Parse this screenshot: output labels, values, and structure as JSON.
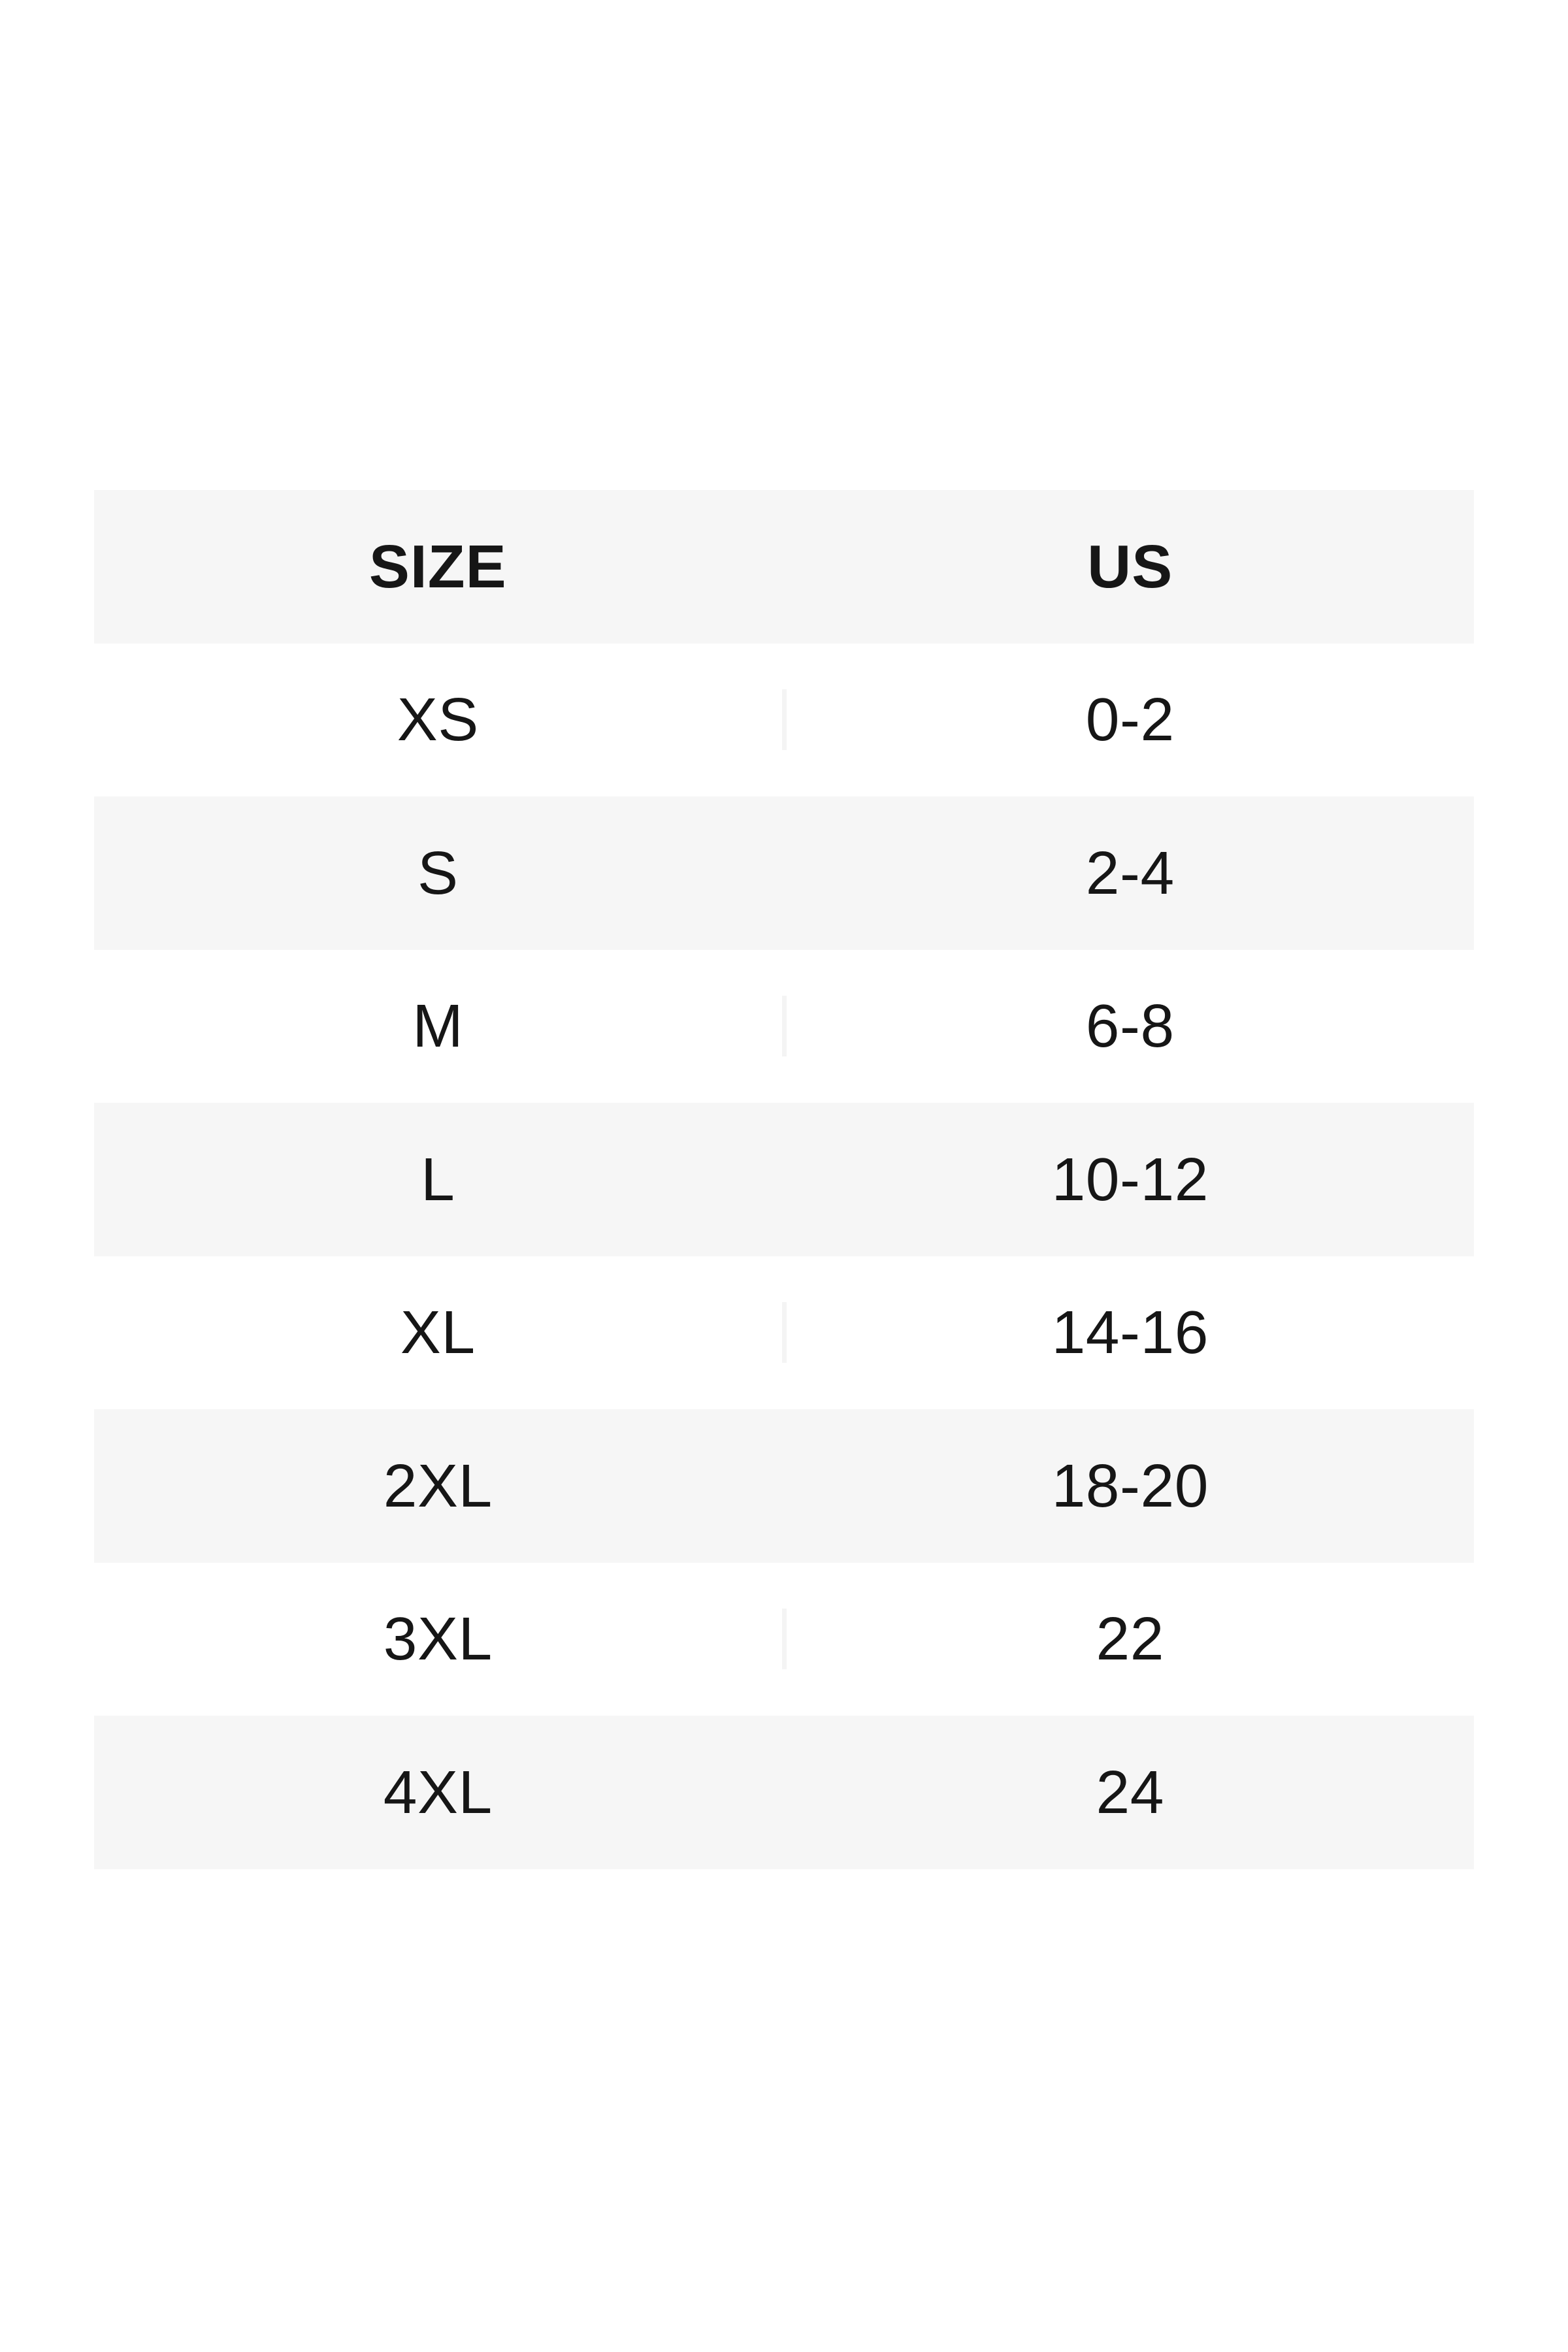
{
  "page": {
    "background": "#ffffff"
  },
  "table": {
    "title_semantic": "size-conversion-chart",
    "header": {
      "size_label": "SIZE",
      "us_label": "US"
    },
    "rows": [
      {
        "size": "XS",
        "us": "0-2"
      },
      {
        "size": "S",
        "us": "2-4"
      },
      {
        "size": "M",
        "us": "6-8"
      },
      {
        "size": "L",
        "us": "10-12"
      },
      {
        "size": "XL",
        "us": "14-16"
      },
      {
        "size": "2XL",
        "us": "18-20"
      },
      {
        "size": "3XL",
        "us": "22"
      },
      {
        "size": "4XL",
        "us": "24"
      }
    ],
    "colors": {
      "stripe": "#f6f6f6",
      "divider": "#f4f4f4",
      "text": "#161616",
      "background": "#ffffff"
    }
  }
}
